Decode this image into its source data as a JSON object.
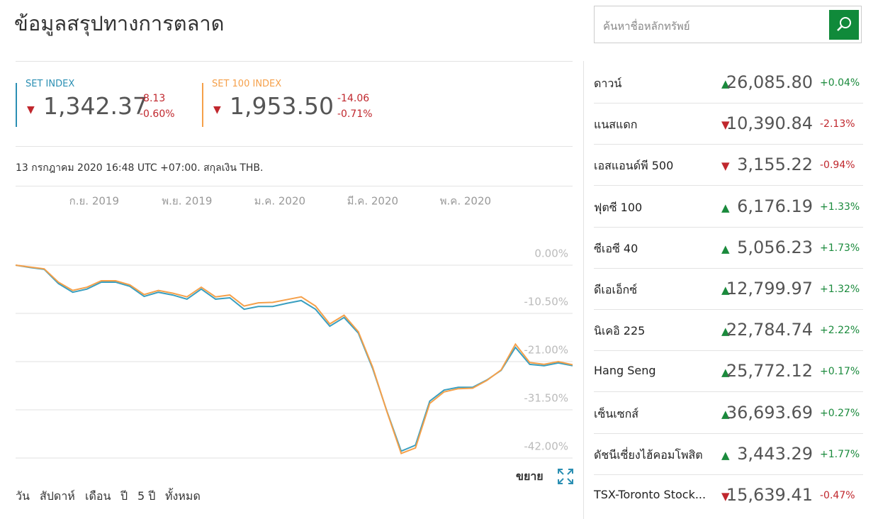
{
  "header": {
    "title": "ข้อมูลสรุปทางการตลาด",
    "search_placeholder": "ค้นหาชื่อหลักทรัพย์"
  },
  "indices": [
    {
      "name": "SET INDEX",
      "color": "#2b8fb3",
      "direction": "down",
      "value": "1,342.37",
      "change": "-8.13",
      "percent": "-0.60%"
    },
    {
      "name": "SET 100 INDEX",
      "color": "#f5a04a",
      "direction": "down",
      "value": "1,953.50",
      "change": "-14.06",
      "percent": "-0.71%"
    }
  ],
  "note": "13 กรกฎาคม 2020 16:48 UTC +07:00. สกุลเงิน THB.",
  "chart_data": {
    "type": "line",
    "xlim": [
      0,
      39
    ],
    "xticks": [
      {
        "value": 5.5,
        "label": "ก.ย. 2019"
      },
      {
        "value": 12,
        "label": "พ.ย. 2019"
      },
      {
        "value": 18.5,
        "label": "ม.ค. 2020"
      },
      {
        "value": 25,
        "label": "มี.ค. 2020"
      },
      {
        "value": 31.5,
        "label": "พ.ค. 2020"
      }
    ],
    "ylim": [
      -42,
      0
    ],
    "yticks": [
      {
        "value": 0,
        "label": "0.00%"
      },
      {
        "value": -10.5,
        "label": "-10.50%"
      },
      {
        "value": -21,
        "label": "-21.00%"
      },
      {
        "value": -31.5,
        "label": "-31.50%"
      },
      {
        "value": -42,
        "label": "-42.00%"
      }
    ],
    "grid": true,
    "series": [
      {
        "name": "SET INDEX",
        "color": "#3a9fc0",
        "values": [
          0,
          -0.5,
          -0.9,
          -4.0,
          -5.9,
          -5.2,
          -3.7,
          -3.7,
          -4.6,
          -6.8,
          -5.9,
          -6.5,
          -7.4,
          -5.2,
          -7.4,
          -7.1,
          -9.6,
          -9.0,
          -9.0,
          -8.3,
          -7.7,
          -9.6,
          -13.3,
          -11.4,
          -14.8,
          -22.5,
          -31.8,
          -40.5,
          -39.2,
          -29.6,
          -27.2,
          -26.6,
          -26.6,
          -25.0,
          -22.9,
          -17.9,
          -21.6,
          -21.9,
          -21.3,
          -21.9
        ]
      },
      {
        "name": "SET 100 INDEX",
        "color": "#f5a04a",
        "values": [
          0,
          -0.4,
          -0.8,
          -3.7,
          -5.5,
          -4.8,
          -3.4,
          -3.4,
          -4.3,
          -6.4,
          -5.5,
          -6.1,
          -6.9,
          -4.8,
          -6.9,
          -6.5,
          -8.9,
          -8.2,
          -8.1,
          -7.5,
          -6.9,
          -8.9,
          -12.8,
          -10.9,
          -14.5,
          -22.2,
          -31.9,
          -41.0,
          -39.8,
          -30.1,
          -27.6,
          -26.9,
          -26.8,
          -25.1,
          -22.8,
          -17.2,
          -21.2,
          -21.6,
          -21.0,
          -21.7
        ]
      }
    ]
  },
  "ranges": [
    "วัน",
    "สัปดาห์",
    "เดือน",
    "ปี",
    "5 ปี",
    "ทั้งหมด"
  ],
  "expand": "ขยาย",
  "markets": [
    {
      "name": "ดาวน์",
      "direction": "up",
      "value": "26,085.80",
      "change": "+0.04%"
    },
    {
      "name": "แนสแดก",
      "direction": "down",
      "value": "10,390.84",
      "change": "-2.13%"
    },
    {
      "name": "เอสแอนด์พี 500",
      "direction": "down",
      "value": "3,155.22",
      "change": "-0.94%"
    },
    {
      "name": "ฟุตซี 100",
      "direction": "up",
      "value": "6,176.19",
      "change": "+1.33%"
    },
    {
      "name": "ซีเอซี 40",
      "direction": "up",
      "value": "5,056.23",
      "change": "+1.73%"
    },
    {
      "name": "ดีเอเอ็กซ์",
      "direction": "up",
      "value": "12,799.97",
      "change": "+1.32%"
    },
    {
      "name": "นิเคอิ 225",
      "direction": "up",
      "value": "22,784.74",
      "change": "+2.22%"
    },
    {
      "name": "Hang Seng",
      "direction": "up",
      "value": "25,772.12",
      "change": "+0.17%"
    },
    {
      "name": "เซ็นเซกส์",
      "direction": "up",
      "value": "36,693.69",
      "change": "+0.27%"
    },
    {
      "name": "ดัชนีเซี่ยงไฮ้คอมโพสิต",
      "direction": "up",
      "value": "3,443.29",
      "change": "+1.77%"
    },
    {
      "name": "TSX-Toronto Stock...",
      "direction": "down",
      "value": "15,639.41",
      "change": "-0.47%"
    }
  ]
}
